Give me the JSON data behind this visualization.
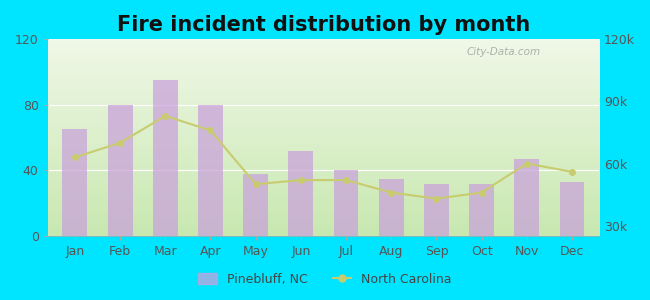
{
  "title": "Fire incident distribution by month",
  "months": [
    "Jan",
    "Feb",
    "Mar",
    "Apr",
    "May",
    "Jun",
    "Jul",
    "Aug",
    "Sep",
    "Oct",
    "Nov",
    "Dec"
  ],
  "pinebluff_values": [
    65,
    80,
    95,
    80,
    38,
    52,
    40,
    35,
    32,
    32,
    47,
    33
  ],
  "nc_values": [
    63000,
    70000,
    83000,
    76000,
    50000,
    52000,
    52000,
    46000,
    43000,
    46000,
    60000,
    56000
  ],
  "bar_color": "#c9a0dc",
  "bar_alpha": 0.72,
  "line_color": "#c8cc6e",
  "line_marker": "o",
  "line_marker_color": "#c8cc6e",
  "background_outer": "#00e5ff",
  "bg_color_top": "#f0f8e8",
  "bg_color_bottom": "#c8e8b0",
  "ylim_left": [
    0,
    120
  ],
  "ylim_right": [
    25000,
    120000
  ],
  "yticks_left": [
    0,
    40,
    80,
    120
  ],
  "yticks_right": [
    30000,
    60000,
    90000,
    120000
  ],
  "ytick_labels_right": [
    "30k",
    "60k",
    "90k",
    "120k"
  ],
  "legend_label_bar": "Pinebluff, NC",
  "legend_label_line": "North Carolina",
  "watermark": "City-Data.com",
  "title_fontsize": 15,
  "axis_fontsize": 9,
  "legend_fontsize": 9
}
